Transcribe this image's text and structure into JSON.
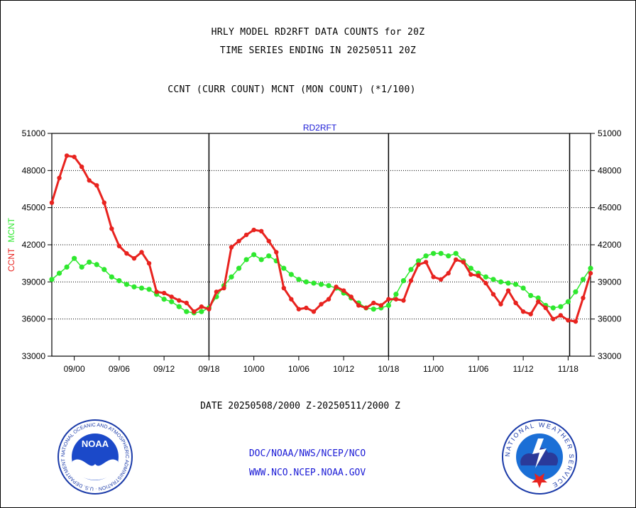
{
  "header": {
    "title_line1": "HRLY MODEL RD2RFT DATA COUNTS for 20Z",
    "title_line2": "TIME SERIES ENDING IN 20250511 20Z",
    "subtitle": "CCNT (CURR COUNT) MCNT (MON COUNT) (*1/100)"
  },
  "footer": {
    "date_range": "DATE 20250508/2000 Z-20250511/2000 Z",
    "org_line1": "DOC/NOAA/NWS/NCEP/NCO",
    "org_line2": "WWW.NCO.NCEP.NOAA.GOV",
    "noaa_logo_text": "NOAA",
    "noaa_ring_text": "NATIONAL OCEANIC AND ATMOSPHERIC ADMINISTRATION · U.S. DEPARTMENT OF COMMERCE",
    "nws_ring_text": "NATIONAL WEATHER SERVICE"
  },
  "colors": {
    "ccnt": "#e8231f",
    "mcnt": "#2ee82e",
    "axis": "#000000",
    "title_blue": "#1a1ad6",
    "date_red": "#e8231f"
  },
  "chart_data": {
    "type": "line",
    "title": "RD2RFT",
    "ylabel_parts": [
      "CCNT",
      "MCNT"
    ],
    "yticks": [
      33000,
      36000,
      39000,
      42000,
      45000,
      48000,
      51000
    ],
    "ytick_labels": [
      "33000",
      "36000",
      "39000",
      "42000",
      "45000",
      "48000",
      "51000"
    ],
    "ylim": [
      33000,
      51000
    ],
    "xlim": [
      0,
      72
    ],
    "xticks": [
      {
        "x": 3,
        "label": "09/00"
      },
      {
        "x": 9,
        "label": "09/06"
      },
      {
        "x": 15,
        "label": "09/12"
      },
      {
        "x": 21,
        "label": "09/18"
      },
      {
        "x": 27,
        "label": "10/00"
      },
      {
        "x": 33,
        "label": "10/06"
      },
      {
        "x": 39,
        "label": "10/12"
      },
      {
        "x": 45,
        "label": "10/18"
      },
      {
        "x": 51,
        "label": "11/00"
      },
      {
        "x": 57,
        "label": "11/06"
      },
      {
        "x": 63,
        "label": "11/12"
      },
      {
        "x": 69,
        "label": "11/18"
      }
    ],
    "day_boundaries": [
      21,
      45,
      69.2
    ],
    "grid": true,
    "legend": "left",
    "series": [
      {
        "name": "CCNT",
        "color": "#e8231f",
        "values": [
          45400,
          47400,
          49200,
          49100,
          48300,
          47200,
          46800,
          45400,
          43300,
          41900,
          41300,
          40900,
          41400,
          40500,
          38200,
          38100,
          37800,
          37500,
          37300,
          36600,
          37000,
          36800,
          38200,
          38500,
          41800,
          42300,
          42800,
          43200,
          43100,
          42300,
          41400,
          38500,
          37600,
          36800,
          36900,
          36600,
          37200,
          37600,
          38600,
          38300,
          37800,
          37100,
          36900,
          37300,
          37100,
          37600,
          37600,
          37500,
          39100,
          40400,
          40600,
          39400,
          39200,
          39700,
          40800,
          40600,
          39600,
          39500,
          38900,
          38000,
          37200,
          38300,
          37300,
          36600,
          36400,
          37400,
          36900,
          36000,
          36300,
          35900,
          35800,
          37700,
          39700
        ]
      },
      {
        "name": "MCNT",
        "color": "#2ee82e",
        "values": [
          39200,
          39700,
          40200,
          40900,
          40200,
          40600,
          40400,
          40000,
          39400,
          39100,
          38800,
          38600,
          38500,
          38400,
          38000,
          37600,
          37400,
          37000,
          36600,
          36500,
          36600,
          36900,
          37800,
          38700,
          39400,
          40100,
          40800,
          41200,
          40800,
          41100,
          40700,
          40100,
          39600,
          39200,
          39000,
          38900,
          38800,
          38700,
          38500,
          38100,
          37700,
          37300,
          36900,
          36800,
          36900,
          37100,
          38000,
          39100,
          40000,
          40700,
          41100,
          41300,
          41300,
          41100,
          41300,
          40700,
          40100,
          39700,
          39400,
          39200,
          39000,
          38900,
          38800,
          38500,
          37900,
          37700,
          37100,
          36900,
          37000,
          37400,
          38200,
          39200,
          40100
        ]
      }
    ]
  }
}
